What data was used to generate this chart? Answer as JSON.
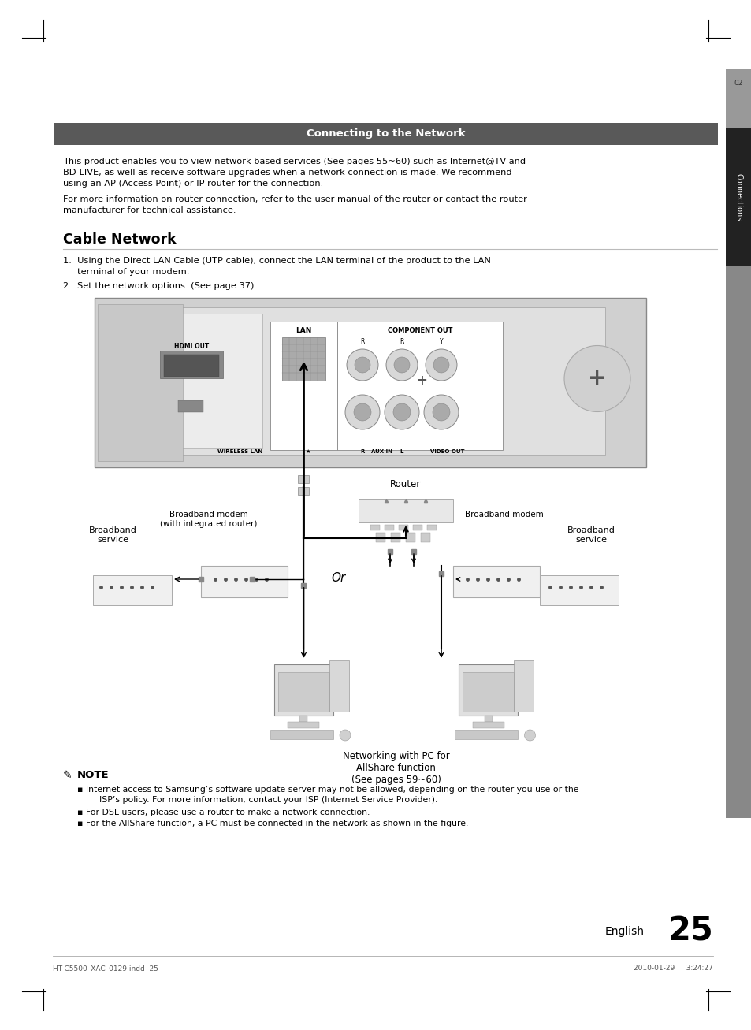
{
  "page_bg": "#ffffff",
  "title_bar_color": "#595959",
  "title_text": "Connecting to the Network",
  "title_text_color": "#ffffff",
  "section_title": "Cable Network",
  "body_text_color": "#000000",
  "para1_line1": "This product enables you to view network based services (See pages 55~60) such as Internet@TV and",
  "para1_line2": "BD-LIVE, as well as receive software upgrades when a network connection is made. We recommend",
  "para1_line3": "using an AP (Access Point) or IP router for the connection.",
  "para2_line1": "For more information on router connection, refer to the user manual of the router or contact the router",
  "para2_line2": "manufacturer for technical assistance.",
  "step1_line1": "1.  Using the Direct LAN Cable (UTP cable), connect the LAN terminal of the product to the LAN",
  "step1_line2": "     terminal of your modem.",
  "step2": "2.  Set the network options. (See page 37)",
  "note_title": "NOTE",
  "note1": "Internet access to Samsung’s software update server may not be allowed, depending on the router you use or the",
  "note1b": "     ISP’s policy. For more information, contact your ISP (Internet Service Provider).",
  "note2": "For DSL users, please use a router to make a network connection.",
  "note3": "For the AllShare function, a PC must be connected in the network as shown in the figure.",
  "sidebar_text": "Connections",
  "sidebar_number": "02",
  "page_number": "25",
  "footer_left": "HT-C5500_XAC_0129.indd  25",
  "footer_right": "2010-01-29     3:24:27",
  "lbl_lan": "LAN",
  "lbl_component_out": "COMPONENT OUT",
  "lbl_hdmi_out": "HDMI OUT",
  "lbl_wireless_lan": "WIRELESS LAN",
  "lbl_r": "R",
  "lbl_aux_in": "AUX IN",
  "lbl_l": "L",
  "lbl_video_out": "VIDEO OUT",
  "lbl_router": "Router",
  "lbl_bb_modem": "Broadband modem\n(with integrated router)",
  "lbl_or": "Or",
  "lbl_bb_modem2": "Broadband modem",
  "lbl_bb_service_left": "Broadband\nservice",
  "lbl_bb_service_right": "Broadband\nservice",
  "lbl_networking": "Networking with PC for\nAllShare function\n(See pages 59~60)"
}
